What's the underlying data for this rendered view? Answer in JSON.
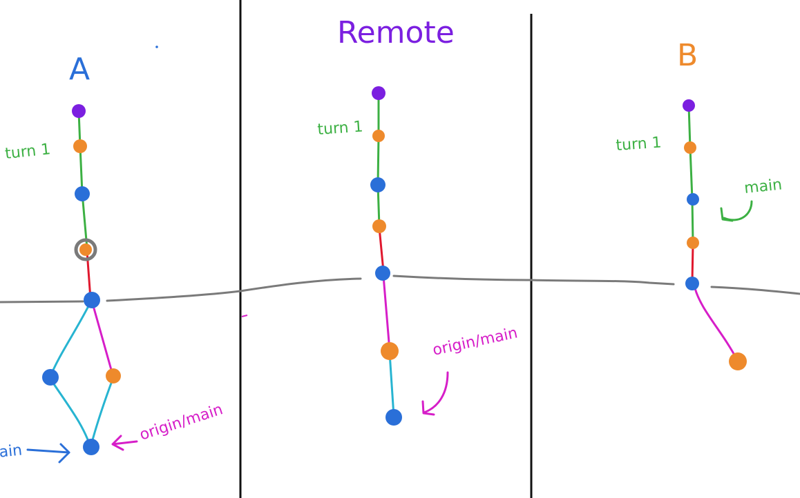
{
  "panels": [
    {
      "id": "a",
      "title": "A",
      "title_color": "#2a6fd8",
      "labels": [
        {
          "key": "turn1",
          "text": "turn 1",
          "color": "#3cb043"
        },
        {
          "key": "origin",
          "text": "origin/main",
          "color": "#d61ec8"
        },
        {
          "key": "main",
          "text": "main",
          "color": "#2a6fd8"
        }
      ]
    },
    {
      "id": "remote",
      "title": "Remote",
      "title_color": "#7b1fe0",
      "labels": [
        {
          "key": "turn1",
          "text": "turn 1",
          "color": "#3cb043"
        },
        {
          "key": "origin",
          "text": "origin/main",
          "color": "#d61ec8"
        }
      ]
    },
    {
      "id": "b",
      "title": "B",
      "title_color": "#ee8a2c",
      "labels": [
        {
          "key": "turn1",
          "text": "turn 1",
          "color": "#3cb043"
        },
        {
          "key": "main",
          "text": "main",
          "color": "#3cb043"
        }
      ]
    }
  ],
  "colors": {
    "purple": "#7b1fe0",
    "orange": "#ee8a2c",
    "blue": "#2a6fd8",
    "green": "#3cb043",
    "red": "#e0182e",
    "magenta": "#d61ec8",
    "cyan": "#27b4d1",
    "gray": "#7a7a7a",
    "divider": "#111111"
  }
}
